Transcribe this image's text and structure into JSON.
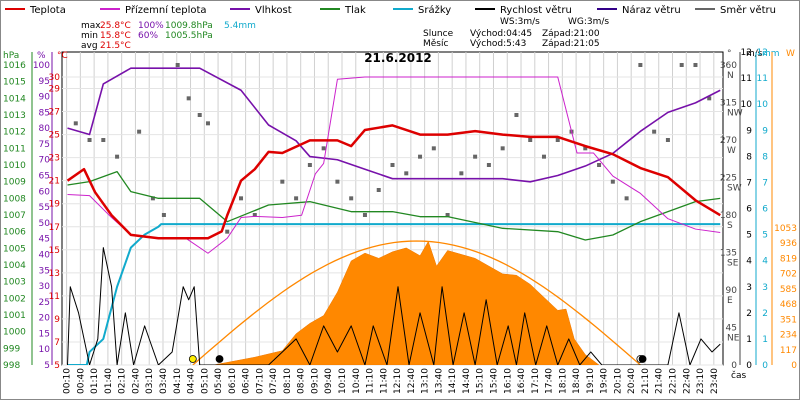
{
  "chart_data": {
    "type": "line",
    "title": "21.6.2012",
    "legend": [
      {
        "label": "Teplota",
        "color": "#dd0000"
      },
      {
        "label": "Přízemní teplota",
        "color": "#cc22cc"
      },
      {
        "label": "Vlhkost",
        "color": "#7711aa"
      },
      {
        "label": "Tlak",
        "color": "#228822"
      },
      {
        "label": "Srážky",
        "color": "#11aacc"
      },
      {
        "label": "Rychlost větru",
        "color": "#000000"
      },
      {
        "label": "Náraz větru",
        "color": "#330088"
      },
      {
        "label": "Směr větru",
        "color": "#666666"
      }
    ],
    "stats": {
      "max_label": "max",
      "max_temp": "25.8°C",
      "max_hum": "100%",
      "max_press": "1009.8hPa",
      "rain": "5.4mm",
      "min_label": "min",
      "min_temp": "15.8°C",
      "min_hum": "60%",
      "min_press": "1005.5hPa",
      "avg_label": "avg",
      "avg_temp": "21.5°C",
      "ws": "WS:3m/s",
      "wg": "WG:3m/s",
      "sun_label": "Slunce",
      "sun_rise": "Východ:04:45",
      "sun_set": "Západ:21:00",
      "moon_label": "Měsíc",
      "moon_rise": "Východ:5:43",
      "moon_set": "Západ:21:05"
    },
    "axis_units": {
      "hpa": "hPa",
      "pct": "%",
      "temp": "°C",
      "deg": "°",
      "ms": "m/s",
      "mm": "mm",
      "w": "W",
      "time": "čas"
    },
    "left_axes": {
      "pressure": [
        "1016",
        "1015",
        "1014",
        "1013",
        "1012",
        "1011",
        "1010",
        "1009",
        "1008",
        "1007",
        "1006",
        "1005",
        "1004",
        "1003",
        "1002",
        "1001",
        "1000",
        "999",
        "998"
      ],
      "humidity": [
        "100",
        "95",
        "90",
        "85",
        "80",
        "75",
        "70",
        "65",
        "60",
        "55",
        "50",
        "45",
        "40",
        "35",
        "30",
        "25",
        "20",
        "15",
        "10",
        "5"
      ],
      "temperature": [
        "30",
        "29",
        "27",
        "25",
        "23",
        "21",
        "19",
        "17",
        "15",
        "13",
        "11",
        "9",
        "7",
        "5"
      ]
    },
    "right_axes": {
      "direction": [
        "360 N",
        "315 NW",
        "270 W",
        "225 SW",
        "180 S",
        "135 SE",
        "90 E",
        "45 NE",
        "0"
      ],
      "wind_speed": [
        "12",
        "11",
        "10",
        "9",
        "8",
        "7",
        "6",
        "5",
        "4",
        "3",
        "2",
        "1",
        "0"
      ],
      "rain_mm": [
        "12",
        "11",
        "10",
        "9",
        "8",
        "7",
        "6",
        "5",
        "4",
        "3",
        "2",
        "1",
        "0"
      ],
      "solar_w": [
        "1053",
        "936",
        "819",
        "702",
        "585",
        "468",
        "351",
        "234",
        "117",
        "0"
      ]
    },
    "x_ticks": [
      "00:10",
      "00:40",
      "01:10",
      "01:40",
      "02:10",
      "02:40",
      "03:10",
      "03:40",
      "04:10",
      "04:40",
      "05:10",
      "05:40",
      "06:10",
      "06:40",
      "07:10",
      "07:40",
      "08:10",
      "08:40",
      "09:10",
      "09:40",
      "10:10",
      "10:40",
      "11:10",
      "11:40",
      "12:10",
      "12:40",
      "13:10",
      "13:40",
      "14:10",
      "14:40",
      "15:10",
      "15:40",
      "16:10",
      "16:40",
      "17:10",
      "17:40",
      "18:10",
      "18:40",
      "19:10",
      "19:40",
      "20:10",
      "20:40",
      "21:10",
      "21:40",
      "22:10",
      "22:40",
      "23:10",
      "23:40"
    ],
    "series": [
      {
        "name": "Teplota",
        "unit": "°C",
        "x": [
          0.2,
          0.8,
          1.2,
          1.8,
          2.5,
          3.5,
          4.5,
          5.3,
          5.8,
          6.0,
          6.5,
          7.0,
          7.5,
          8.0,
          9.0,
          10.0,
          10.5,
          11.0,
          11.5,
          12.0,
          13.0,
          14.0,
          15.0,
          16.0,
          17.0,
          18.0,
          19.0,
          20.0,
          21.0,
          22.0,
          23.0,
          23.9
        ],
        "y": [
          21,
          22,
          20,
          18,
          16.3,
          16,
          16,
          16,
          16.6,
          18,
          21,
          22,
          23.5,
          23.4,
          24.5,
          24.5,
          24,
          25.4,
          25.6,
          25.8,
          25,
          25,
          25.3,
          25,
          24.8,
          24.8,
          24,
          23.3,
          22.1,
          21.3,
          19.3,
          18
        ]
      },
      {
        "name": "Přízemní teplota",
        "unit": "°C",
        "x": [
          0.2,
          1.0,
          1.8,
          2.5,
          3.5,
          4.5,
          5.3,
          6.0,
          6.5,
          7.0,
          8.0,
          8.7,
          9.2,
          9.5,
          10.0,
          11.0,
          12.0,
          13.0,
          14.0,
          15.0,
          16.0,
          17.0,
          18.0,
          18.7,
          19.3,
          20.0,
          21.0,
          22.0,
          23.0,
          23.9
        ],
        "y": [
          19.8,
          19.7,
          17.8,
          16.3,
          16,
          16,
          14.7,
          16,
          17.8,
          17.9,
          17.8,
          18,
          21.6,
          22.5,
          29.8,
          30,
          30,
          30,
          30,
          30,
          30,
          30,
          30,
          23.4,
          23.4,
          21.4,
          19.9,
          17.7,
          16.8,
          16.5
        ]
      },
      {
        "name": "Vlhkost",
        "unit": "%",
        "x": [
          0.2,
          1.0,
          1.5,
          2.5,
          5.0,
          6.5,
          7.5,
          8.5,
          9.0,
          10.0,
          11.0,
          12.0,
          13.0,
          14.0,
          15.0,
          16.0,
          17.0,
          18.0,
          19.0,
          20.0,
          21.0,
          22.0,
          23.0,
          23.9
        ],
        "y": [
          80,
          78,
          94,
          99,
          99,
          92,
          81,
          76,
          71,
          70,
          67,
          64,
          64,
          64,
          64,
          64,
          63,
          65,
          68,
          72,
          79,
          85,
          88,
          92
        ]
      },
      {
        "name": "Tlak",
        "unit": "hPa",
        "x": [
          0.2,
          1.0,
          2.0,
          2.5,
          3.5,
          5.0,
          6.0,
          7.5,
          9.0,
          10.5,
          12.0,
          13.0,
          14.0,
          16.0,
          18.0,
          19.0,
          20.0,
          21.0,
          22.0,
          23.0,
          23.9
        ],
        "y": [
          1008.8,
          1009.0,
          1009.6,
          1008.4,
          1008.0,
          1008.0,
          1006.6,
          1007.6,
          1007.8,
          1007.2,
          1007.2,
          1006.9,
          1006.9,
          1006.2,
          1006.0,
          1005.5,
          1005.8,
          1006.6,
          1007.2,
          1007.8,
          1008.0
        ]
      },
      {
        "name": "Srážky",
        "unit": "mm",
        "x": [
          0.2,
          0.9,
          1.0,
          1.5,
          2.0,
          2.5,
          3.0,
          3.5,
          3.6,
          6.0,
          12.0,
          18.0,
          23.9
        ],
        "y": [
          0,
          0,
          0.5,
          1.0,
          3.0,
          4.5,
          5.0,
          5.3,
          5.4,
          5.4,
          5.4,
          5.4,
          5.4
        ]
      },
      {
        "name": "Rychlost větru",
        "unit": "m/s",
        "x": [
          0.2,
          0.3,
          0.6,
          1.0,
          1.3,
          1.5,
          1.8,
          2.0,
          2.3,
          2.6,
          3.0,
          3.5,
          4.0,
          4.4,
          4.6,
          4.8,
          5.0,
          5.5,
          6.0,
          6.5,
          7.0,
          7.5,
          8.0,
          8.5,
          9.0,
          9.5,
          10.0,
          10.5,
          11.0,
          11.3,
          11.8,
          12.2,
          12.6,
          13.0,
          13.5,
          13.8,
          14.2,
          14.6,
          15.0,
          15.4,
          15.8,
          16.2,
          16.5,
          16.8,
          17.2,
          17.6,
          18.0,
          18.4,
          18.8,
          19.2,
          19.6,
          20.0,
          20.5,
          21.0,
          21.5,
          22.0,
          22.4,
          22.8,
          23.2,
          23.6,
          23.9
        ],
        "y": [
          0,
          3,
          2,
          0,
          1,
          4.5,
          3,
          0,
          2,
          0,
          1.5,
          0,
          0.5,
          3,
          2.5,
          3,
          0,
          0,
          0,
          0,
          0,
          0,
          0.5,
          1,
          0,
          1.5,
          0.5,
          1.5,
          0,
          1.5,
          0,
          3,
          0,
          2,
          0,
          3,
          0,
          2,
          0,
          2.5,
          0,
          1.5,
          0,
          2,
          0,
          1.5,
          0,
          1,
          0,
          0.5,
          0,
          0,
          0,
          0,
          0,
          0,
          2,
          0,
          1,
          0.5,
          0.8
        ]
      },
      {
        "name": "Náraz větru",
        "unit": "m/s",
        "x": [],
        "y": []
      },
      {
        "name": "Směr větru",
        "unit": "°",
        "x": [],
        "y": []
      },
      {
        "name": "Sluneční záření",
        "unit": "W",
        "x": [
          5.5,
          6.0,
          7.0,
          8.0,
          8.5,
          9.0,
          9.5,
          10.0,
          10.5,
          11.0,
          11.5,
          12.0,
          12.5,
          13.0,
          13.3,
          13.6,
          14.0,
          14.5,
          15.0,
          15.5,
          16.0,
          16.5,
          17.0,
          17.5,
          18.0,
          18.3,
          18.6,
          19.0,
          19.5
        ],
        "y": [
          0,
          20,
          60,
          110,
          240,
          320,
          380,
          560,
          800,
          860,
          820,
          870,
          900,
          840,
          950,
          760,
          880,
          850,
          820,
          760,
          700,
          690,
          620,
          520,
          420,
          430,
          200,
          80,
          0
        ]
      }
    ]
  }
}
